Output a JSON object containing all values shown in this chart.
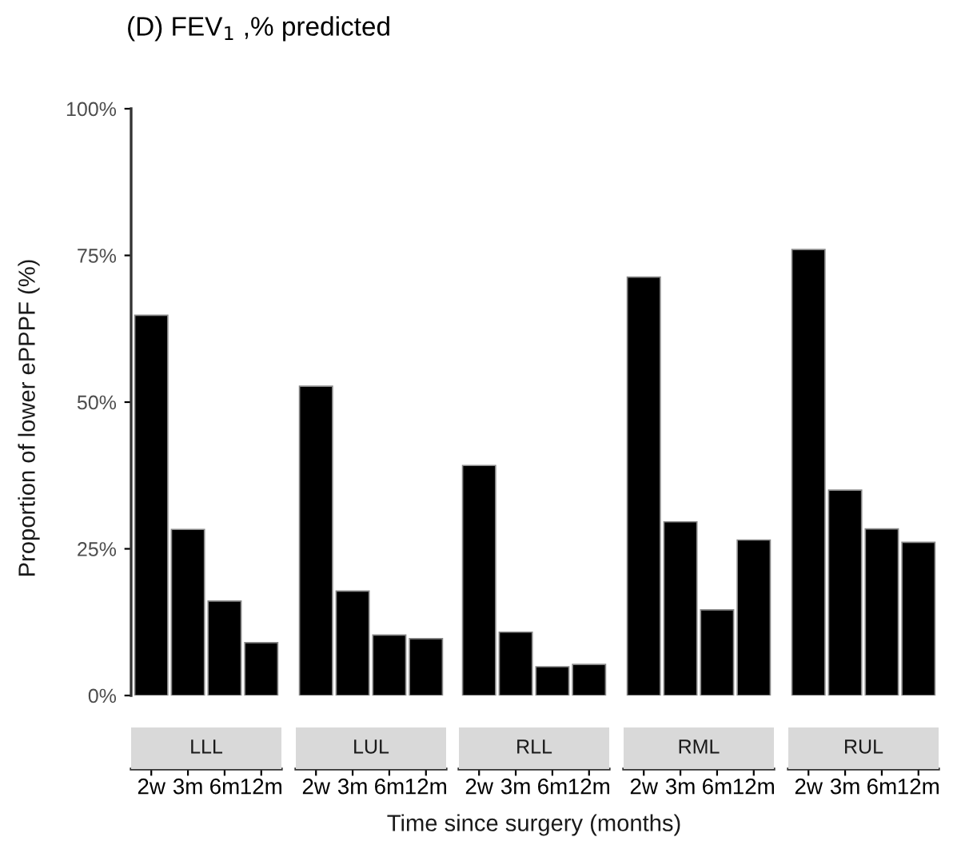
{
  "chart_data": [
    {
      "type": "bar",
      "title": "(D) FEV$_{1}$ ,% predicted",
      "subtitle": "LLL",
      "ylabel": "Proportion of lower ePPPF (%)",
      "categories": [
        "2w",
        "3m",
        "6m",
        "12m"
      ],
      "values": [
        64.8,
        28.3,
        16.1,
        9.0
      ],
      "color": "#000000",
      "ylim": [
        0,
        100
      ],
      "yticks": [
        {
          "value": 0,
          "label": "0%"
        },
        {
          "value": 25,
          "label": "25%"
        },
        {
          "value": 50,
          "label": "50%"
        },
        {
          "value": 75,
          "label": "75%"
        },
        {
          "value": 100,
          "label": "100%"
        }
      ],
      "grid": false
    },
    {
      "type": "bar",
      "subtitle": "LUL",
      "categories": [
        "2w",
        "3m",
        "6m",
        "12m"
      ],
      "values": [
        52.7,
        17.8,
        10.3,
        9.7
      ],
      "color": "#000000",
      "ylim": [
        0,
        100
      ],
      "tick_labels": "x",
      "grid": false
    },
    {
      "type": "bar",
      "subtitle": "RLL",
      "xlabel": "Time since surgery (months)",
      "categories": [
        "2w",
        "3m",
        "6m",
        "12m"
      ],
      "values": [
        39.2,
        10.8,
        4.9,
        5.3
      ],
      "color": "#000000",
      "ylim": [
        0,
        100
      ],
      "tick_labels": "x",
      "grid": false
    },
    {
      "type": "bar",
      "subtitle": "RML",
      "categories": [
        "2w",
        "3m",
        "6m",
        "12m"
      ],
      "values": [
        71.3,
        29.6,
        14.6,
        26.5
      ],
      "color": "#000000",
      "ylim": [
        0,
        100
      ],
      "tick_labels": "x",
      "grid": false
    },
    {
      "type": "bar",
      "subtitle": "RUL",
      "categories": [
        "2w",
        "3m",
        "6m",
        "12m"
      ],
      "values": [
        76.0,
        35.0,
        28.4,
        26.1
      ],
      "color": "#000000",
      "ylim": [
        0,
        100
      ],
      "tick_labels": "x",
      "grid": false
    }
  ]
}
